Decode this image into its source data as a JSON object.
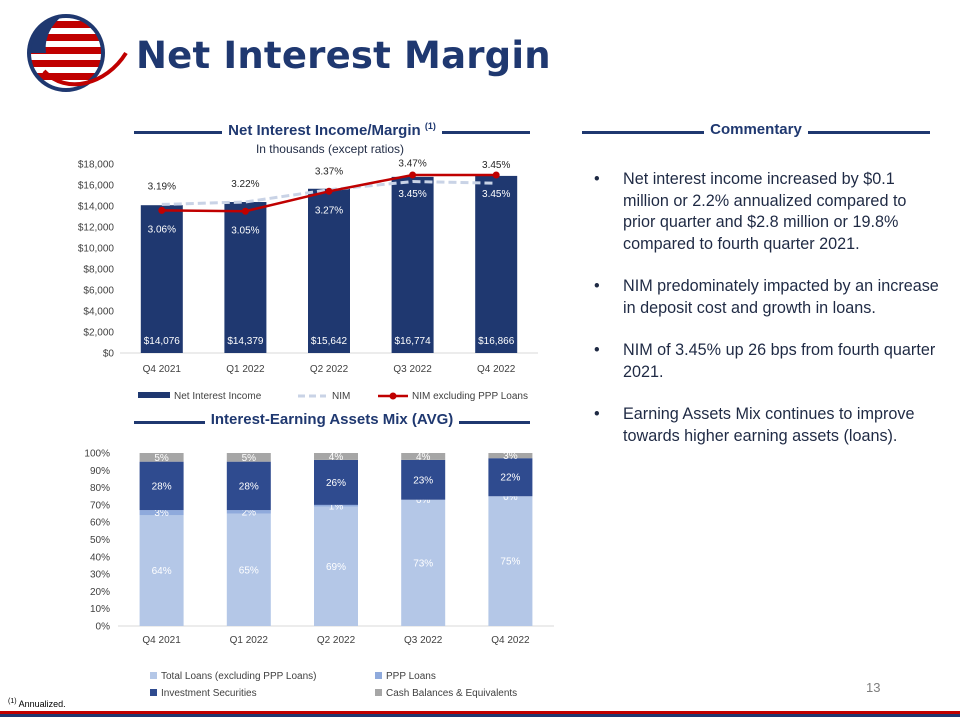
{
  "page": {
    "title": "Net Interest Margin",
    "page_number": "13",
    "footnote_marker": "(1)",
    "footnote_text": "Annualized."
  },
  "colors": {
    "navy": "#1f3870",
    "red": "#c00000",
    "loans": "#b4c7e7",
    "ppp": "#8faadc",
    "securities": "#2f4b8f",
    "cash": "#a6a6a6"
  },
  "sections": {
    "nii_title": "Net Interest Income/Margin",
    "nii_title_sup": "(1)",
    "nii_subtitle": "In thousands (except ratios)",
    "commentary_title": "Commentary",
    "mix_title": "Interest-Earning Assets Mix (AVG)"
  },
  "commentary": {
    "bullet": "•",
    "items": [
      "Net interest income increased by $0.1 million or 2.2% annualized compared to prior quarter and $2.8 million or 19.8% compared to fourth quarter 2021.",
      "NIM predominately impacted by an increase in deposit cost and growth in loans.",
      "NIM of 3.45% up 26 bps from fourth quarter 2021.",
      "Earning Assets Mix continues to improve towards higher earning assets (loans)."
    ]
  },
  "chart_data": [
    {
      "type": "bar",
      "categories": [
        "Q4 2021",
        "Q1 2022",
        "Q2 2022",
        "Q3 2022",
        "Q4 2022"
      ],
      "series": [
        {
          "name": "Net Interest Income",
          "type": "bar",
          "values": [
            14076,
            14379,
            15642,
            16774,
            16866
          ],
          "labels": [
            "$14,076",
            "$14,379",
            "$15,642",
            "$16,774",
            "$16,866"
          ]
        },
        {
          "name": "NIM",
          "type": "line",
          "values": [
            3.19,
            3.22,
            3.37,
            3.47,
            3.45
          ],
          "labels": [
            "3.19%",
            "3.22%",
            "3.37%",
            "3.47%",
            "3.45%"
          ]
        },
        {
          "name": "NIM excluding PPP Loans",
          "type": "line",
          "values": [
            3.06,
            3.05,
            3.27,
            3.45,
            3.45
          ],
          "labels": [
            "3.06%",
            "3.05%",
            "3.27%",
            "3.45%",
            "3.45%"
          ]
        }
      ],
      "y_ticks": [
        "$0",
        "$2,000",
        "$4,000",
        "$6,000",
        "$8,000",
        "$10,000",
        "$12,000",
        "$14,000",
        "$16,000",
        "$18,000"
      ],
      "ylim": [
        0,
        18000
      ],
      "legend": "bottom",
      "grid": false
    },
    {
      "type": "bar",
      "stacked": true,
      "categories": [
        "Q4 2021",
        "Q1 2022",
        "Q2 2022",
        "Q3 2022",
        "Q4 2022"
      ],
      "series": [
        {
          "name": "Total Loans (excluding PPP Loans)",
          "values": [
            64,
            65,
            69,
            73,
            75
          ],
          "labels": [
            "64%",
            "65%",
            "69%",
            "73%",
            "75%"
          ]
        },
        {
          "name": "PPP Loans",
          "values": [
            3,
            2,
            1,
            0,
            0
          ],
          "labels": [
            "3%",
            "2%",
            "1%",
            "0%",
            "0%"
          ]
        },
        {
          "name": "Investment Securities",
          "values": [
            28,
            28,
            26,
            23,
            22
          ],
          "labels": [
            "28%",
            "28%",
            "26%",
            "23%",
            "22%"
          ]
        },
        {
          "name": "Cash Balances & Equivalents",
          "values": [
            5,
            5,
            4,
            4,
            3
          ],
          "labels": [
            "5%",
            "5%",
            "4%",
            "4%",
            "3%"
          ]
        }
      ],
      "y_ticks": [
        "0%",
        "10%",
        "20%",
        "30%",
        "40%",
        "50%",
        "60%",
        "70%",
        "80%",
        "90%",
        "100%"
      ],
      "ylim": [
        0,
        100
      ],
      "legend": "bottom",
      "grid": false
    }
  ]
}
